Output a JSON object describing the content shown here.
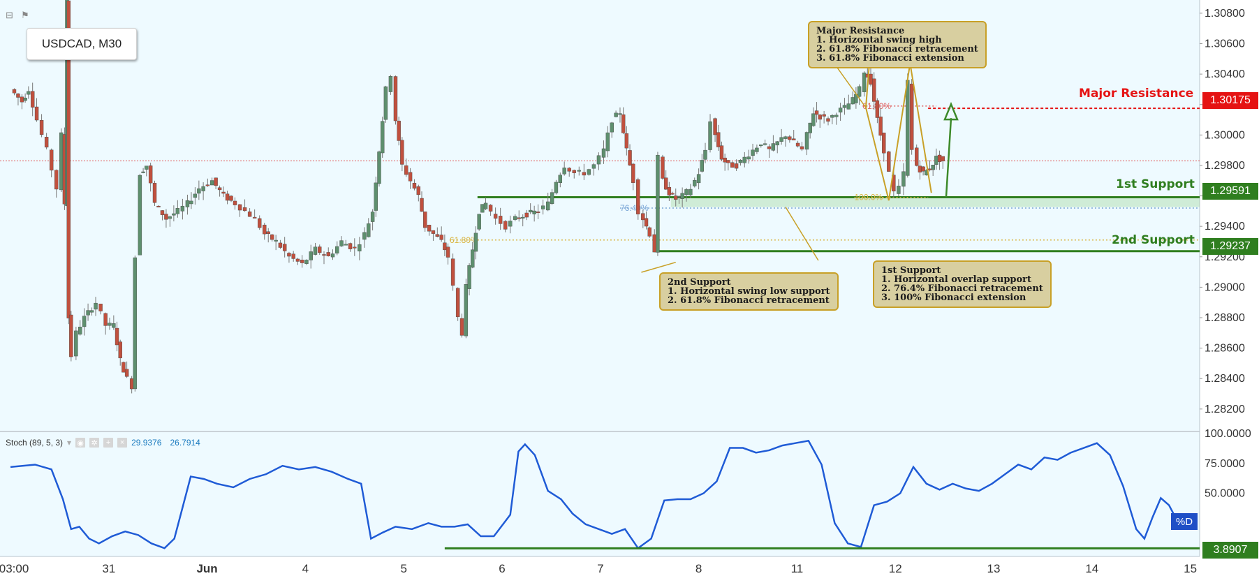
{
  "chart_data": [
    {
      "type": "candlestick",
      "title": "USDCAD, M30",
      "symbol": "USDCAD",
      "timeframe": "M30",
      "x_ticks": [
        "03:00",
        "31",
        "Jun",
        "4",
        "5",
        "6",
        "7",
        "8",
        "11",
        "12",
        "13",
        "14",
        "15"
      ],
      "y_ticks": [
        "1.30800",
        "1.30600",
        "1.30400",
        "1.30200",
        "1.30000",
        "1.29800",
        "1.29600",
        "1.29400",
        "1.29200",
        "1.29000",
        "1.28800",
        "1.28600",
        "1.28400",
        "1.28200"
      ],
      "ylim": [
        1.2808,
        1.3085
      ],
      "current_price": 1.2983,
      "price_path": [
        [
          0,
          1.303
        ],
        [
          0.7,
          1.3022
        ],
        [
          1.1,
          1.303
        ],
        [
          1.6,
          1.301
        ],
        [
          2.2,
          1.299
        ],
        [
          2.8,
          1.2965
        ],
        [
          3.1,
          1.3
        ],
        [
          3.3,
          1.2955
        ],
        [
          3.45,
          1.309
        ],
        [
          3.55,
          1.288
        ],
        [
          3.7,
          1.2855
        ],
        [
          4.0,
          1.287
        ],
        [
          4.5,
          1.288
        ],
        [
          5.2,
          1.289
        ],
        [
          5.8,
          1.2875
        ],
        [
          6.3,
          1.2875
        ],
        [
          6.7,
          1.2852
        ],
        [
          7.1,
          1.284
        ],
        [
          7.4,
          1.2835
        ],
        [
          7.6,
          1.292
        ],
        [
          7.9,
          1.2975
        ],
        [
          8.3,
          1.298
        ],
        [
          8.8,
          1.2955
        ],
        [
          9.5,
          1.2945
        ],
        [
          10.2,
          1.295
        ],
        [
          10.8,
          1.2955
        ],
        [
          11.5,
          1.2965
        ],
        [
          12.3,
          1.297
        ],
        [
          13.0,
          1.296
        ],
        [
          13.7,
          1.2955
        ],
        [
          14.3,
          1.295
        ],
        [
          14.9,
          1.2945
        ],
        [
          15.5,
          1.2935
        ],
        [
          16.2,
          1.293
        ],
        [
          17.0,
          1.292
        ],
        [
          17.8,
          1.2915
        ],
        [
          18.6,
          1.2925
        ],
        [
          19.4,
          1.292
        ],
        [
          20.2,
          1.293
        ],
        [
          21.0,
          1.2925
        ],
        [
          21.6,
          1.2935
        ],
        [
          22.1,
          1.295
        ],
        [
          22.5,
          1.299
        ],
        [
          22.9,
          1.303
        ],
        [
          23.2,
          1.304
        ],
        [
          23.5,
          1.301
        ],
        [
          23.9,
          1.298
        ],
        [
          24.4,
          1.297
        ],
        [
          24.9,
          1.296
        ],
        [
          25.3,
          1.294
        ],
        [
          25.8,
          1.2935
        ],
        [
          26.3,
          1.293
        ],
        [
          26.7,
          1.292
        ],
        [
          27.0,
          1.29
        ],
        [
          27.3,
          1.288
        ],
        [
          27.55,
          1.287
        ],
        [
          27.8,
          1.29
        ],
        [
          28.2,
          1.2925
        ],
        [
          28.6,
          1.295
        ],
        [
          29.0,
          1.2955
        ],
        [
          29.6,
          1.2945
        ],
        [
          30.2,
          1.294
        ],
        [
          30.8,
          1.2945
        ],
        [
          31.5,
          1.2948
        ],
        [
          32.2,
          1.295
        ],
        [
          32.8,
          1.2955
        ],
        [
          33.3,
          1.297
        ],
        [
          33.8,
          1.298
        ],
        [
          34.4,
          1.2975
        ],
        [
          35.0,
          1.2975
        ],
        [
          35.6,
          1.298
        ],
        [
          36.2,
          1.299
        ],
        [
          36.7,
          1.301
        ],
        [
          37.2,
          1.3015
        ],
        [
          37.6,
          1.299
        ],
        [
          38.0,
          1.297
        ],
        [
          38.3,
          1.295
        ],
        [
          38.6,
          1.2945
        ],
        [
          39.0,
          1.2935
        ],
        [
          39.3,
          1.2924
        ],
        [
          39.5,
          1.2985
        ],
        [
          39.8,
          1.297
        ],
        [
          40.2,
          1.2962
        ],
        [
          40.6,
          1.2958
        ],
        [
          41.0,
          1.296
        ],
        [
          41.5,
          1.2965
        ],
        [
          42.0,
          1.2975
        ],
        [
          42.4,
          1.299
        ],
        [
          42.7,
          1.301
        ],
        [
          43.0,
          1.3
        ],
        [
          43.4,
          1.2985
        ],
        [
          43.8,
          1.298
        ],
        [
          44.3,
          1.298
        ],
        [
          44.8,
          1.2985
        ],
        [
          45.3,
          1.299
        ],
        [
          45.8,
          1.2995
        ],
        [
          46.3,
          1.299
        ],
        [
          46.8,
          1.2995
        ],
        [
          47.3,
          1.3
        ],
        [
          47.8,
          1.2995
        ],
        [
          48.3,
          1.299
        ],
        [
          48.6,
          1.3
        ],
        [
          49.0,
          1.3015
        ],
        [
          49.4,
          1.3012
        ],
        [
          49.9,
          1.301
        ],
        [
          50.4,
          1.3015
        ],
        [
          50.9,
          1.3018
        ],
        [
          51.4,
          1.3023
        ],
        [
          51.8,
          1.303
        ],
        [
          52.1,
          1.3042
        ],
        [
          52.5,
          1.3035
        ],
        [
          52.9,
          1.301
        ],
        [
          53.3,
          1.299
        ],
        [
          53.6,
          1.2975
        ],
        [
          53.9,
          1.2962
        ],
        [
          54.2,
          1.2965
        ],
        [
          54.5,
          1.2975
        ],
        [
          54.75,
          1.3035
        ],
        [
          55.0,
          1.299
        ],
        [
          55.3,
          1.298
        ],
        [
          55.7,
          1.2975
        ],
        [
          56.1,
          1.2978
        ],
        [
          56.5,
          1.2985
        ],
        [
          56.9,
          1.2983
        ]
      ],
      "levels": [
        {
          "name": "Major Resistance",
          "value": 1.30175,
          "label": "1.30175",
          "color": "#e51313"
        },
        {
          "name": "1st Support",
          "value": 1.29591,
          "label": "1.29591",
          "color": "#2f7e1f"
        },
        {
          "name": "2nd Support",
          "value": 1.29237,
          "label": "1.29237",
          "color": "#2f7e1f"
        }
      ],
      "fib_levels": [
        {
          "label": "61.80%",
          "value": 1.2931,
          "color": "#d9b441"
        },
        {
          "label": "76.40%",
          "value": 1.2952,
          "color": "#7aa6d6"
        },
        {
          "label": "61.80%",
          "value": 1.3019,
          "color": "#e06464"
        },
        {
          "label": "100.0%",
          "value": 1.2959,
          "color": "#d9b441"
        }
      ],
      "annotations": [
        {
          "id": "major-resistance-note",
          "text": "Major Resistance\n1. Horizontal swing high\n2. 61.8% Fibonacci retracement\n3. 61.8% Fibonacci extension"
        },
        {
          "id": "first-support-note",
          "text": "1st Support\n1. Horizontal overlap support\n2. 76.4% Fibonacci retracement\n3. 100% Fibonacci extension"
        },
        {
          "id": "second-support-note",
          "text": "2nd Support\n1. Horizontal swing low support\n2. 61.8% Fibonacci retracement"
        }
      ]
    },
    {
      "type": "line",
      "title": "Stoch (89, 5, 3)",
      "values_readout": [
        "29.9376",
        "26.7914"
      ],
      "y_ticks": [
        "100.0000",
        "75.0000",
        "50.0000"
      ],
      "ylim": [
        0,
        100
      ],
      "series_tag": "%D",
      "level": {
        "value": 3.8907,
        "label": "3.8907"
      },
      "series": [
        {
          "name": "%D",
          "values": [
            [
              0,
              72
            ],
            [
              1.5,
              74
            ],
            [
              2.5,
              70
            ],
            [
              3.2,
              45
            ],
            [
              3.7,
              20
            ],
            [
              4.2,
              22
            ],
            [
              4.8,
              12
            ],
            [
              5.4,
              8
            ],
            [
              6.2,
              14
            ],
            [
              7.0,
              18
            ],
            [
              7.8,
              15
            ],
            [
              8.6,
              8
            ],
            [
              9.4,
              4
            ],
            [
              10.0,
              12
            ],
            [
              11.0,
              64
            ],
            [
              11.8,
              62
            ],
            [
              12.6,
              58
            ],
            [
              13.6,
              55
            ],
            [
              14.6,
              62
            ],
            [
              15.6,
              66
            ],
            [
              16.6,
              73
            ],
            [
              17.6,
              70
            ],
            [
              18.6,
              72
            ],
            [
              19.6,
              68
            ],
            [
              20.6,
              62
            ],
            [
              21.4,
              58
            ],
            [
              22.0,
              12
            ],
            [
              22.7,
              17
            ],
            [
              23.5,
              22
            ],
            [
              24.5,
              20
            ],
            [
              25.5,
              25
            ],
            [
              26.3,
              22
            ],
            [
              27.1,
              22
            ],
            [
              27.9,
              24
            ],
            [
              28.7,
              14
            ],
            [
              29.5,
              14
            ],
            [
              30.5,
              32
            ],
            [
              31.0,
              85
            ],
            [
              31.4,
              91
            ],
            [
              32.0,
              82
            ],
            [
              32.8,
              52
            ],
            [
              33.6,
              45
            ],
            [
              34.3,
              33
            ],
            [
              35.1,
              24
            ],
            [
              35.9,
              20
            ],
            [
              36.7,
              16
            ],
            [
              37.5,
              20
            ],
            [
              38.3,
              4
            ],
            [
              39.1,
              12
            ],
            [
              39.9,
              44
            ],
            [
              40.7,
              45
            ],
            [
              41.5,
              45
            ],
            [
              42.3,
              50
            ],
            [
              43.1,
              60
            ],
            [
              43.9,
              88
            ],
            [
              44.7,
              88
            ],
            [
              45.5,
              84
            ],
            [
              46.3,
              86
            ],
            [
              47.1,
              90
            ],
            [
              47.9,
              92
            ],
            [
              48.7,
              94
            ],
            [
              49.5,
              74
            ],
            [
              50.3,
              25
            ],
            [
              51.1,
              8
            ],
            [
              51.9,
              5
            ],
            [
              52.7,
              40
            ],
            [
              53.5,
              43
            ],
            [
              54.3,
              50
            ],
            [
              55.1,
              72
            ],
            [
              55.9,
              58
            ],
            [
              56.7,
              53
            ],
            [
              57.5,
              58
            ],
            [
              58.3,
              54
            ],
            [
              59.1,
              52
            ],
            [
              59.9,
              58
            ],
            [
              60.7,
              66
            ],
            [
              61.5,
              74
            ],
            [
              62.3,
              70
            ],
            [
              63.1,
              80
            ],
            [
              63.9,
              78
            ],
            [
              64.7,
              84
            ],
            [
              65.5,
              88
            ],
            [
              66.3,
              92
            ],
            [
              67.1,
              82
            ],
            [
              67.9,
              56
            ],
            [
              68.7,
              20
            ],
            [
              69.2,
              12
            ],
            [
              69.7,
              30
            ],
            [
              70.2,
              46
            ],
            [
              70.7,
              40
            ],
            [
              71.2,
              27
            ],
            [
              71.7,
              25
            ],
            [
              72.2,
              27
            ]
          ]
        }
      ]
    }
  ],
  "ui": {
    "symbol_label": "USDCAD, M30",
    "stoch_title": "Stoch (89, 5, 3)",
    "stoch_val1": "29.9376",
    "stoch_val2": "26.7914",
    "pct_d": "%D"
  }
}
